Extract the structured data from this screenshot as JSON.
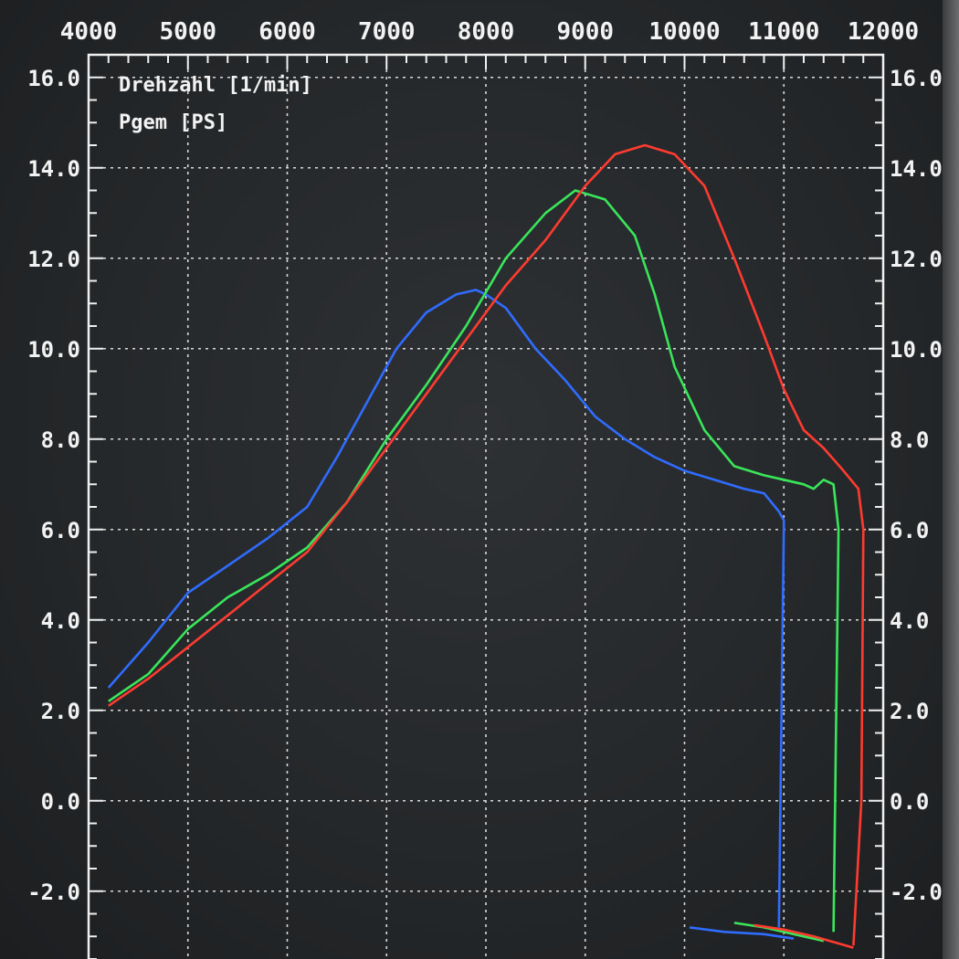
{
  "chart_data": {
    "type": "line",
    "legend": [
      "Drehzahl [1/min]",
      "Pgem [PS]"
    ],
    "x_ticks": [
      "4000",
      "5000",
      "6000",
      "7000",
      "8000",
      "9000",
      "10000",
      "11000",
      "12000"
    ],
    "xlim": [
      4000,
      12000
    ],
    "y_ticks_left": [
      "16.0",
      "14.0",
      "12.0",
      "10.0",
      "8.0",
      "6.0",
      "4.0",
      "2.0",
      "0.0",
      "-2.0"
    ],
    "y_ticks_right": [
      "16.0",
      "14.0",
      "12.0",
      "10.0",
      "8.0",
      "6.0",
      "4.0",
      "2.0",
      "0.0",
      "-2.0"
    ],
    "ylim": [
      -3.5,
      16.5
    ],
    "grid": true,
    "series": [
      {
        "color": "#2f6cff",
        "x": [
          4200,
          4600,
          5000,
          5400,
          5800,
          6200,
          6500,
          6800,
          7100,
          7400,
          7700,
          7900,
          8000,
          8200,
          8500,
          8800,
          9100,
          9400,
          9700,
          10000,
          10300,
          10600,
          10800,
          10950,
          11000,
          10950
        ],
        "y": [
          2.5,
          3.5,
          4.6,
          5.2,
          5.8,
          6.5,
          7.6,
          8.8,
          10.0,
          10.8,
          11.2,
          11.3,
          11.2,
          10.9,
          10.0,
          9.3,
          8.5,
          8.0,
          7.6,
          7.3,
          7.1,
          6.9,
          6.8,
          6.4,
          6.2,
          -2.8
        ]
      },
      {
        "color": "#39e65a",
        "x": [
          4200,
          4600,
          5000,
          5400,
          5800,
          6200,
          6600,
          7000,
          7400,
          7800,
          8200,
          8600,
          8900,
          9200,
          9500,
          9700,
          9900,
          10200,
          10500,
          10800,
          11000,
          11200,
          11300,
          11400,
          11500,
          11550,
          11500
        ],
        "y": [
          2.2,
          2.8,
          3.8,
          4.5,
          5.0,
          5.6,
          6.6,
          8.0,
          9.2,
          10.5,
          12.0,
          13.0,
          13.5,
          13.3,
          12.5,
          11.2,
          9.6,
          8.2,
          7.4,
          7.2,
          7.1,
          7.0,
          6.9,
          7.1,
          7.0,
          6.0,
          -2.9
        ]
      },
      {
        "color": "#ff3b30",
        "x": [
          4200,
          4600,
          5000,
          5400,
          5800,
          6200,
          6600,
          7000,
          7400,
          7800,
          8200,
          8600,
          9000,
          9300,
          9600,
          9900,
          10200,
          10500,
          10800,
          11000,
          11200,
          11400,
          11600,
          11750,
          11800,
          11780,
          11700
        ],
        "y": [
          2.1,
          2.7,
          3.4,
          4.1,
          4.8,
          5.5,
          6.6,
          7.8,
          9.0,
          10.2,
          11.4,
          12.4,
          13.6,
          14.3,
          14.5,
          14.3,
          13.6,
          12.0,
          10.3,
          9.1,
          8.2,
          7.8,
          7.3,
          6.9,
          6.0,
          0.0,
          -3.2
        ]
      }
    ],
    "tail_segments": [
      {
        "color": "#2f6cff",
        "x": [
          10050,
          10400,
          10800,
          11100
        ],
        "y": [
          -2.8,
          -2.9,
          -2.95,
          -3.05
        ]
      },
      {
        "color": "#39e65a",
        "x": [
          10500,
          10800,
          11100,
          11400
        ],
        "y": [
          -2.7,
          -2.8,
          -2.95,
          -3.1
        ]
      },
      {
        "color": "#ff3b30",
        "x": [
          10700,
          11000,
          11300,
          11700
        ],
        "y": [
          -2.75,
          -2.85,
          -3.0,
          -3.25
        ]
      }
    ]
  }
}
